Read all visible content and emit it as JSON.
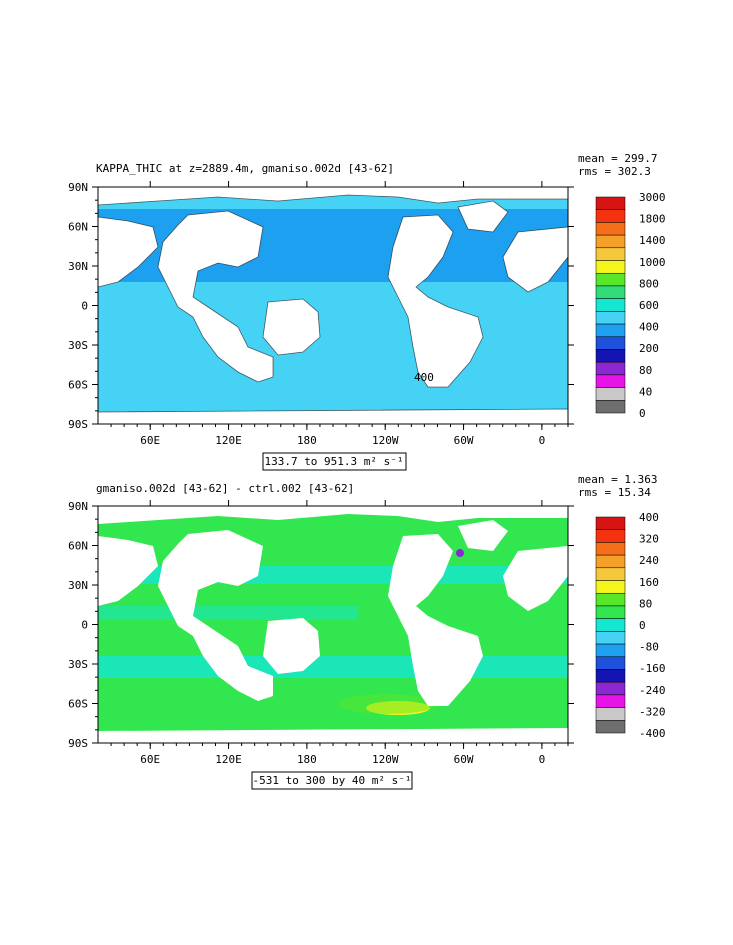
{
  "chart_data": [
    {
      "type": "heatmap",
      "title": "KAPPA_THIC at z=2889.4m, gmaniso.002d [43-62]",
      "stats": {
        "mean": "mean = 299.7",
        "rms": "rms = 302.3"
      },
      "range_label": "133.7 to 951.3 m² s⁻¹",
      "y_ticks": [
        "90N",
        "60N",
        "30N",
        "0",
        "30S",
        "60S",
        "90S"
      ],
      "x_ticks": [
        "60E",
        "120E",
        "180",
        "120W",
        "60W",
        "0"
      ],
      "contour_label": "400",
      "colorbar": {
        "labels": [
          "3000",
          "1800",
          "1400",
          "1000",
          "800",
          "600",
          "400",
          "200",
          "80",
          "40",
          "0"
        ],
        "colors": [
          "#d71414",
          "#f5320f",
          "#f56e19",
          "#f5a028",
          "#f5c83c",
          "#f5f51e",
          "#5ae628",
          "#32dc78",
          "#14e6d2",
          "#46d2f5",
          "#1ea0f0",
          "#1e50dc",
          "#1414b4",
          "#8c28d2",
          "#e614e6",
          "#c8c8c8",
          "#6e6e6e"
        ]
      },
      "field": {
        "ocean_color": "#1ea0f0",
        "southern_color": "#46d2f5",
        "arctic_color": "#46d2f5"
      }
    },
    {
      "type": "heatmap",
      "title": "gmaniso.002d [43-62] - ctrl.002 [43-62]",
      "stats": {
        "mean": "mean = 1.363",
        "rms": "rms = 15.34"
      },
      "range_label": "-531 to 300 by 40 m² s⁻¹",
      "y_ticks": [
        "90N",
        "60N",
        "30N",
        "0",
        "30S",
        "60S",
        "90S"
      ],
      "x_ticks": [
        "60E",
        "120E",
        "180",
        "120W",
        "60W",
        "0"
      ],
      "colorbar": {
        "labels": [
          "400",
          "320",
          "240",
          "160",
          "80",
          "0",
          "-80",
          "-160",
          "-240",
          "-320",
          "-400"
        ],
        "colors": [
          "#d71414",
          "#f5320f",
          "#f56e19",
          "#f5a028",
          "#f5c83c",
          "#f5f51e",
          "#5ae628",
          "#32e650",
          "#14e6d2",
          "#46d2f5",
          "#1ea0f0",
          "#1e50dc",
          "#1414b4",
          "#8c28d2",
          "#e614e6",
          "#c8c8c8",
          "#6e6e6e"
        ]
      },
      "field": {
        "ocean_color": "#32e650",
        "band_color": "#14e6d2",
        "hot_color": "#f5f51e"
      }
    }
  ]
}
